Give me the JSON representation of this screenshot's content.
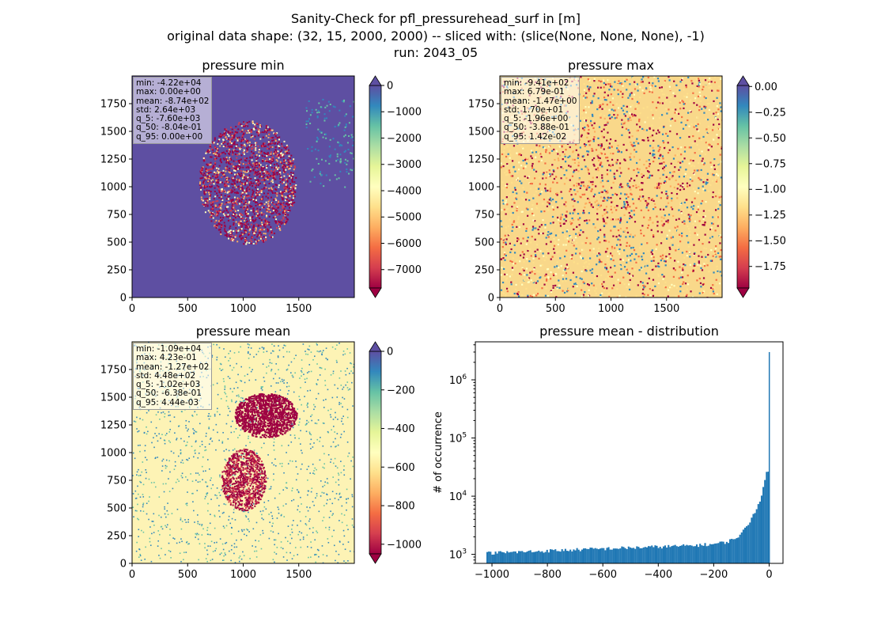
{
  "suptitle": [
    "Sanity-Check for pfl_pressurehead_surf in [m]",
    "original data shape: (32, 15, 2000, 2000) -- sliced with: (slice(None, None, None), -1)",
    "run: 2043_05"
  ],
  "chart_data": [
    {
      "type": "heatmap",
      "title": "pressure min",
      "colormap": "Spectral",
      "extend": "both",
      "xlim": [
        0,
        2000
      ],
      "ylim": [
        0,
        2000
      ],
      "xticks": [
        "0",
        "500",
        "1000",
        "1500"
      ],
      "yticks": [
        "0",
        "250",
        "500",
        "750",
        "1000",
        "1250",
        "1500",
        "1750"
      ],
      "clim": [
        -7700,
        0
      ],
      "colorbar_ticks": [
        "0",
        "−1000",
        "−2000",
        "−3000",
        "−4000",
        "−5000",
        "−6000",
        "−7000"
      ],
      "colorbar_tick_values": [
        0,
        -1000,
        -2000,
        -3000,
        -4000,
        -5000,
        -6000,
        -7000
      ],
      "stats": [
        "min: -4.22e+04",
        "max: 0.00e+00",
        "mean: -8.74e+02",
        "std: 2.64e+03",
        "q_5: -7.60e+03",
        "q_50: -8.04e-01",
        "q_95: 0.00e+00"
      ]
    },
    {
      "type": "heatmap",
      "title": "pressure max",
      "colormap": "Spectral",
      "extend": "both",
      "xlim": [
        0,
        2000
      ],
      "ylim": [
        0,
        2000
      ],
      "xticks": [
        "0",
        "500",
        "1000",
        "1500"
      ],
      "yticks": [
        "0",
        "250",
        "500",
        "750",
        "1000",
        "1250",
        "1500",
        "1750"
      ],
      "clim": [
        -1.96,
        0.01
      ],
      "colorbar_ticks": [
        "0.00",
        "−0.25",
        "−0.50",
        "−0.75",
        "−1.00",
        "−1.25",
        "−1.50",
        "−1.75"
      ],
      "colorbar_tick_values": [
        0,
        -0.25,
        -0.5,
        -0.75,
        -1.0,
        -1.25,
        -1.5,
        -1.75
      ],
      "stats": [
        "min: -9.41e+02",
        "max: 6.79e-01",
        "mean: -1.47e+00",
        "std: 1.70e+01",
        "q_5: -1.96e+00",
        "q_50: -3.88e-01",
        "q_95: 1.42e-02"
      ]
    },
    {
      "type": "heatmap",
      "title": "pressure mean",
      "colormap": "Spectral",
      "extend": "both",
      "xlim": [
        0,
        2000
      ],
      "ylim": [
        0,
        2000
      ],
      "xticks": [
        "0",
        "500",
        "1000",
        "1500"
      ],
      "yticks": [
        "0",
        "250",
        "500",
        "750",
        "1000",
        "1250",
        "1500",
        "1750"
      ],
      "clim": [
        -1050,
        0
      ],
      "colorbar_ticks": [
        "0",
        "−200",
        "−400",
        "−600",
        "−800",
        "−1000"
      ],
      "colorbar_tick_values": [
        0,
        -200,
        -400,
        -600,
        -800,
        -1000
      ],
      "stats": [
        "min: -1.09e+04",
        "max: 4.23e-01",
        "mean: -1.27e+02",
        "std: 4.48e+02",
        "q_5: -1.02e+03",
        "q_50: -6.38e-01",
        "q_95: 4.44e-03"
      ]
    },
    {
      "type": "bar",
      "title": "pressure mean - distribution",
      "xlabel": "",
      "ylabel": "# of occurrence",
      "yscale": "log",
      "xlim": [
        -1060,
        50
      ],
      "ylim": [
        700,
        4500000
      ],
      "xticks": [
        "−1000",
        "−800",
        "−600",
        "−400",
        "−200",
        "0"
      ],
      "xtick_values": [
        -1000,
        -800,
        -600,
        -400,
        -200,
        0
      ],
      "yticks": [
        "10^3",
        "10^4",
        "10^5",
        "10^6"
      ],
      "ytick_values": [
        1000,
        10000,
        100000,
        1000000
      ],
      "bin_range": [
        -1020,
        0
      ],
      "bin_width": 6,
      "bar_color": "#1f77b4",
      "profile_x": [
        -1020,
        -900,
        -800,
        -700,
        -600,
        -500,
        -400,
        -300,
        -250,
        -200,
        -150,
        -120,
        -100,
        -80,
        -60,
        -40,
        -30,
        -20,
        -15,
        -10,
        -6,
        -3,
        0
      ],
      "profile_y": [
        1050,
        1100,
        1150,
        1200,
        1250,
        1300,
        1350,
        1400,
        1450,
        1500,
        1650,
        1900,
        2300,
        3000,
        4500,
        7000,
        9500,
        14000,
        18000,
        25000,
        30000,
        26000,
        3000000
      ]
    }
  ]
}
